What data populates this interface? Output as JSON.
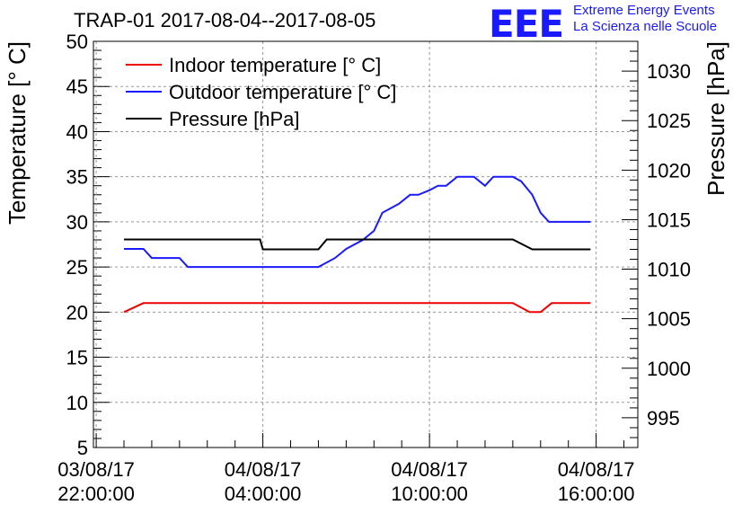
{
  "header": {
    "title": "TRAP-01 2017-08-04--2017-08-05",
    "logo": "EEE",
    "logo_line1": "Extreme Energy Events",
    "logo_line2": "La Scienza nelle Scuole"
  },
  "colors": {
    "indoor": "#ee0000",
    "outdoor": "#1a1aff",
    "pressure": "#000000",
    "grid": "#999999",
    "logo": "#1a1aff"
  },
  "chart_data": {
    "type": "line",
    "title": "TRAP-01 2017-08-04--2017-08-05",
    "xlabel": "",
    "ylabel": "Temperature [° C]",
    "y2label": "Pressure [hPa]",
    "x_unit": "hours from 03/08/17 22:00:00",
    "xlim": [
      -0.1,
      19.5
    ],
    "ylim": [
      5,
      50
    ],
    "y2lim": [
      992,
      1033
    ],
    "x_ticks": [
      {
        "x": 0,
        "line1": "03/08/17",
        "line2": "22:00:00"
      },
      {
        "x": 6,
        "line1": "04/08/17",
        "line2": "04:00:00"
      },
      {
        "x": 12,
        "line1": "04/08/17",
        "line2": "10:00:00"
      },
      {
        "x": 18,
        "line1": "04/08/17",
        "line2": "16:00:00"
      }
    ],
    "y_ticks": [
      "5",
      "10",
      "15",
      "20",
      "25",
      "30",
      "35",
      "40",
      "45",
      "50"
    ],
    "y2_ticks": [
      "995",
      "1000",
      "1005",
      "1010",
      "1015",
      "1020",
      "1025",
      "1030"
    ],
    "grid": true,
    "legend_position": "top-left",
    "series": [
      {
        "name": "Indoor temperature [° C]",
        "axis": "left",
        "color": "#ee0000",
        "points": [
          [
            1,
            20
          ],
          [
            1.7,
            21
          ],
          [
            15,
            21
          ],
          [
            15.6,
            20
          ],
          [
            16,
            20
          ],
          [
            16.4,
            21
          ],
          [
            17.8,
            21
          ]
        ]
      },
      {
        "name": "Outdoor temperature [° C]",
        "axis": "left",
        "color": "#1a1aff",
        "points": [
          [
            1,
            27
          ],
          [
            1.7,
            27
          ],
          [
            2,
            26
          ],
          [
            3,
            26
          ],
          [
            3.3,
            25
          ],
          [
            8,
            25
          ],
          [
            8.6,
            26
          ],
          [
            9,
            27
          ],
          [
            9.6,
            28
          ],
          [
            10,
            29
          ],
          [
            10.3,
            31
          ],
          [
            10.9,
            32
          ],
          [
            11.3,
            33
          ],
          [
            11.6,
            33
          ],
          [
            12,
            33.5
          ],
          [
            12.3,
            34
          ],
          [
            12.6,
            34
          ],
          [
            13,
            35
          ],
          [
            13.6,
            35
          ],
          [
            14,
            34
          ],
          [
            14.3,
            35
          ],
          [
            15,
            35
          ],
          [
            15.3,
            34.5
          ],
          [
            15.7,
            33
          ],
          [
            16,
            31
          ],
          [
            16.3,
            30
          ],
          [
            17.8,
            30
          ]
        ]
      },
      {
        "name": "Pressure [hPa]",
        "axis": "right",
        "color": "#000000",
        "points": [
          [
            1,
            1013
          ],
          [
            5.9,
            1013
          ],
          [
            6,
            1012
          ],
          [
            8,
            1012
          ],
          [
            8.3,
            1013
          ],
          [
            15,
            1013
          ],
          [
            15.7,
            1012
          ],
          [
            17.8,
            1012
          ]
        ]
      }
    ]
  }
}
